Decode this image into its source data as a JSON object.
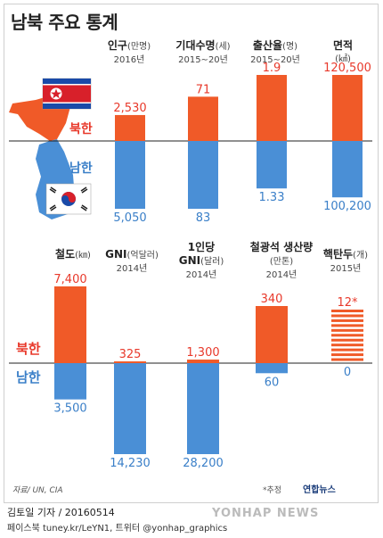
{
  "title": "남북 주요 통계",
  "labels": {
    "north": "북한",
    "south": "남한"
  },
  "colors": {
    "north": "#f05a28",
    "south": "#4a8fd6",
    "north_text": "#e8392b",
    "south_text": "#3a7fc8"
  },
  "source": "자료/ UN, CIA",
  "note": "*추정",
  "logo": "연합뉴스",
  "watermark": "YONHAP NEWS",
  "footer": {
    "byline": "김토일 기자 / 20160514",
    "social": "페이스북 tuney.kr/LeYN1, 트위터 @yonhap_graphics"
  },
  "chart_data": [
    {
      "type": "bar",
      "name": "인구",
      "unit": "(만명)",
      "period": "2016년",
      "north_value": 2530,
      "south_value": 5050,
      "north_label": "2,530",
      "south_label": "5,050",
      "max": 5050
    },
    {
      "type": "bar",
      "name": "기대수명",
      "unit": "(세)",
      "period": "2015∼20년",
      "north_value": 71,
      "south_value": 83,
      "north_label": "71",
      "south_label": "83",
      "max": 83
    },
    {
      "type": "bar",
      "name": "출산율",
      "unit": "(명)",
      "period": "2015∼20년",
      "north_value": 1.9,
      "south_value": 1.33,
      "north_label": "1.9",
      "south_label": "1.33",
      "max": 1.9
    },
    {
      "type": "bar",
      "name": "면적",
      "unit": "(㎢)",
      "period": "",
      "north_value": 120500,
      "south_value": 100200,
      "north_label": "120,500",
      "south_label": "100,200",
      "max": 120500
    },
    {
      "type": "bar",
      "name": "철도",
      "unit": "(㎞)",
      "period": "",
      "north_value": 7400,
      "south_value": 3500,
      "north_label": "7,400",
      "south_label": "3,500",
      "max": 7400
    },
    {
      "type": "bar",
      "name": "GNI",
      "unit": "(억달러)",
      "period": "2014년",
      "north_value": 325,
      "south_value": 14230,
      "north_label": "325",
      "south_label": "14,230",
      "max": 14230
    },
    {
      "type": "bar",
      "name": "1인당 GNI",
      "unit": "(달러)",
      "period": "2014년",
      "north_value": 1300,
      "south_value": 28200,
      "north_label": "1,300",
      "south_label": "28,200",
      "max": 28200
    },
    {
      "type": "bar",
      "name": "철광석 생산량",
      "unit": "(만톤)",
      "period": "2014년",
      "north_value": 340,
      "south_value": 60,
      "north_label": "340",
      "south_label": "60",
      "max": 340
    },
    {
      "type": "bar",
      "name": "핵탄두",
      "unit": "(개)",
      "period": "2015년",
      "north_value": 12,
      "south_value": 0,
      "north_label": "12*",
      "south_label": "0",
      "max": 12
    }
  ]
}
